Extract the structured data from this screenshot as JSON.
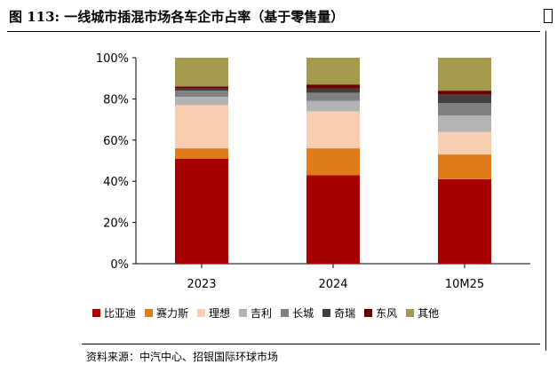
{
  "title": "图 113: 一线城市插混市场各车企市占率（基于零售量）",
  "source": "资料来源：中汽中心、招银国际环球市场",
  "chart_data": {
    "type": "bar",
    "stacked": true,
    "categories": [
      "2023",
      "2024",
      "10M25"
    ],
    "ylim": [
      0,
      100
    ],
    "yticks": [
      "0%",
      "20%",
      "40%",
      "60%",
      "80%",
      "100%"
    ],
    "grid": false,
    "legend_position": "bottom",
    "series": [
      {
        "name": "比亚迪",
        "color": "#a80000",
        "values": [
          51,
          43,
          41
        ]
      },
      {
        "name": "赛力斯",
        "color": "#e07b1a",
        "values": [
          5,
          13,
          12
        ]
      },
      {
        "name": "理想",
        "color": "#f8cdb0",
        "values": [
          21,
          18,
          11
        ]
      },
      {
        "name": "吉利",
        "color": "#b3b3b3",
        "values": [
          4,
          5,
          8
        ]
      },
      {
        "name": "长城",
        "color": "#808080",
        "values": [
          3,
          4,
          6
        ]
      },
      {
        "name": "奇瑞",
        "color": "#404040",
        "values": [
          1,
          2,
          4
        ]
      },
      {
        "name": "东风",
        "color": "#6b0000",
        "values": [
          1,
          2,
          2
        ]
      },
      {
        "name": "其他",
        "color": "#a39b4b",
        "values": [
          14,
          13,
          16
        ]
      }
    ]
  }
}
